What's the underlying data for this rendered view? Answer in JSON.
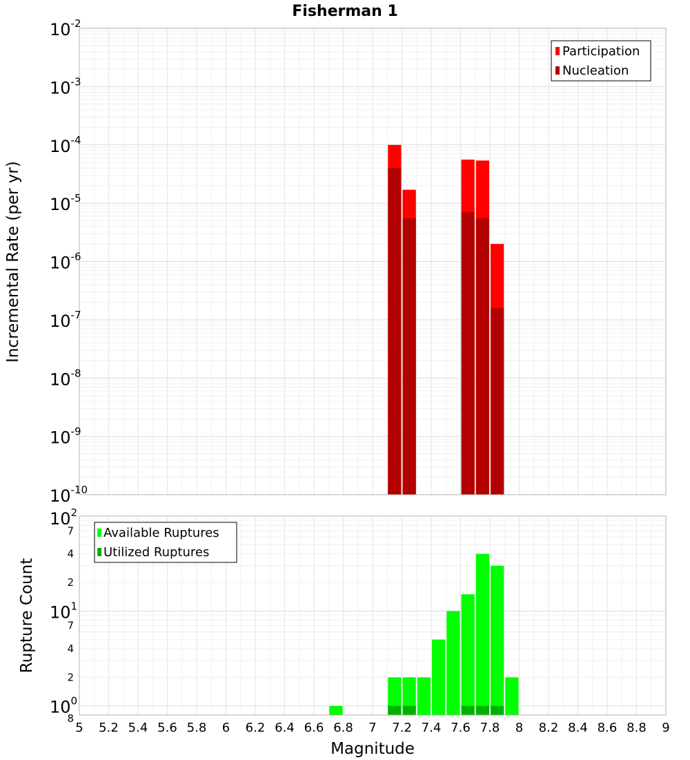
{
  "chart_data": [
    {
      "type": "bar",
      "title": "Fisherman 1",
      "ylabel": "Incremental Rate (per yr)",
      "yscale": "log",
      "ylim": [
        1e-10,
        0.01
      ],
      "y_ticks": [
        {
          "base": "10",
          "exp": "-2"
        },
        {
          "base": "10",
          "exp": "-3"
        },
        {
          "base": "10",
          "exp": "-4"
        },
        {
          "base": "10",
          "exp": "-5"
        },
        {
          "base": "10",
          "exp": "-6"
        },
        {
          "base": "10",
          "exp": "-7"
        },
        {
          "base": "10",
          "exp": "-8"
        },
        {
          "base": "10",
          "exp": "-9"
        },
        {
          "base": "10",
          "exp": "-10"
        }
      ],
      "xlim": [
        5,
        9
      ],
      "grid": true,
      "legend_position": "top-right",
      "series": [
        {
          "name": "Participation",
          "color": "#ff0000",
          "points": [
            {
              "x": 7.15,
              "y": 0.0001
            },
            {
              "x": 7.25,
              "y": 1.7e-05
            },
            {
              "x": 7.65,
              "y": 5.6e-05
            },
            {
              "x": 7.75,
              "y": 5.4e-05
            },
            {
              "x": 7.85,
              "y": 2e-06
            }
          ]
        },
        {
          "name": "Nucleation",
          "color": "#b30000",
          "points": [
            {
              "x": 7.15,
              "y": 4e-05
            },
            {
              "x": 7.25,
              "y": 5.5e-06
            },
            {
              "x": 7.65,
              "y": 7e-06
            },
            {
              "x": 7.75,
              "y": 5.5e-06
            },
            {
              "x": 7.85,
              "y": 1.6e-07
            }
          ]
        }
      ]
    },
    {
      "type": "bar",
      "xlabel": "Magnitude",
      "ylabel": "Rupture Count",
      "yscale": "log",
      "ylim": [
        0.8,
        100
      ],
      "y_major_ticks": [
        {
          "base": "10",
          "exp": "2"
        },
        {
          "base": "10",
          "exp": "1"
        },
        {
          "base": "10",
          "exp": "0"
        }
      ],
      "y_minor_ticks": [
        "7",
        "4",
        "2",
        "7",
        "4",
        "2",
        "8"
      ],
      "x_ticks": [
        "5",
        "5.2",
        "5.4",
        "5.6",
        "5.8",
        "6",
        "6.2",
        "6.4",
        "6.6",
        "6.8",
        "7",
        "7.2",
        "7.4",
        "7.6",
        "7.8",
        "8",
        "8.2",
        "8.4",
        "8.6",
        "8.8",
        "9"
      ],
      "xlim": [
        5,
        9
      ],
      "grid": true,
      "legend_position": "top-left",
      "series": [
        {
          "name": "Available Ruptures",
          "color": "#00ff00",
          "points": [
            {
              "x": 6.75,
              "y": 1
            },
            {
              "x": 7.15,
              "y": 2
            },
            {
              "x": 7.25,
              "y": 2
            },
            {
              "x": 7.35,
              "y": 2
            },
            {
              "x": 7.45,
              "y": 5
            },
            {
              "x": 7.55,
              "y": 10
            },
            {
              "x": 7.65,
              "y": 15
            },
            {
              "x": 7.75,
              "y": 40
            },
            {
              "x": 7.85,
              "y": 30
            },
            {
              "x": 7.95,
              "y": 2
            }
          ]
        },
        {
          "name": "Utilized Ruptures",
          "color": "#00b300",
          "points": [
            {
              "x": 7.15,
              "y": 1
            },
            {
              "x": 7.25,
              "y": 1
            },
            {
              "x": 7.65,
              "y": 1
            },
            {
              "x": 7.75,
              "y": 1
            },
            {
              "x": 7.85,
              "y": 1
            }
          ]
        }
      ]
    }
  ]
}
